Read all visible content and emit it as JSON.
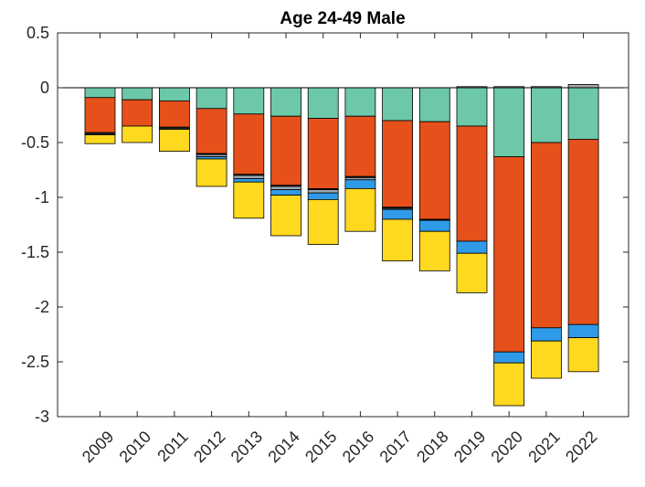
{
  "chart_data": {
    "type": "bar",
    "stacked": true,
    "title": "Age 24-49 Male",
    "xlabel": "",
    "ylabel": "",
    "ylim": [
      -3,
      0.5
    ],
    "yticks": [
      0.5,
      0,
      -0.5,
      -1,
      -1.5,
      -2,
      -2.5,
      -3
    ],
    "ytick_labels": [
      "0.5",
      "0",
      "-0.5",
      "-1",
      "-1.5",
      "-2",
      "-2.5",
      "-3"
    ],
    "categories": [
      "2009",
      "2010",
      "2011",
      "2012",
      "2013",
      "2014",
      "2015",
      "2016",
      "2017",
      "2018",
      "2019",
      "2020",
      "2021",
      "2022"
    ],
    "grid": false,
    "legend": "none",
    "series": [
      {
        "color": "#6cc8a8",
        "values": [
          -0.09,
          -0.11,
          -0.12,
          -0.19,
          -0.24,
          -0.26,
          -0.28,
          -0.26,
          -0.3,
          -0.31,
          -0.35,
          -0.63,
          -0.5,
          -0.47
        ]
      },
      {
        "color": "#e6501b",
        "values": [
          -0.32,
          -0.24,
          -0.24,
          -0.41,
          -0.55,
          -0.63,
          -0.64,
          -0.55,
          -0.79,
          -0.89,
          -1.05,
          -1.78,
          -1.69,
          -1.69
        ]
      },
      {
        "color": "#1f1f1f",
        "values": [
          -0.01,
          0,
          -0.01,
          -0.01,
          -0.01,
          -0.01,
          -0.01,
          -0.01,
          -0.01,
          -0.01,
          0,
          0,
          0,
          0
        ]
      },
      {
        "color": "#9aa7b0",
        "values": [
          -0.01,
          0,
          -0.01,
          -0.02,
          -0.03,
          -0.03,
          -0.03,
          -0.02,
          -0.01,
          0,
          0,
          0,
          0,
          0
        ]
      },
      {
        "color": "#2f9be8",
        "values": [
          0,
          0,
          0,
          -0.02,
          -0.03,
          -0.05,
          -0.06,
          -0.08,
          -0.09,
          -0.1,
          -0.11,
          -0.1,
          -0.12,
          -0.12
        ]
      },
      {
        "color": "#ffd820",
        "values": [
          -0.08,
          -0.15,
          -0.2,
          -0.25,
          -0.33,
          -0.37,
          -0.41,
          -0.39,
          -0.38,
          -0.36,
          -0.36,
          -0.39,
          -0.34,
          -0.31
        ]
      },
      {
        "color": "#a6a6a6",
        "values": [
          0,
          0,
          0,
          0,
          0,
          0,
          0,
          0,
          0,
          0,
          0.01,
          0.01,
          0.01,
          0.03
        ]
      }
    ]
  }
}
